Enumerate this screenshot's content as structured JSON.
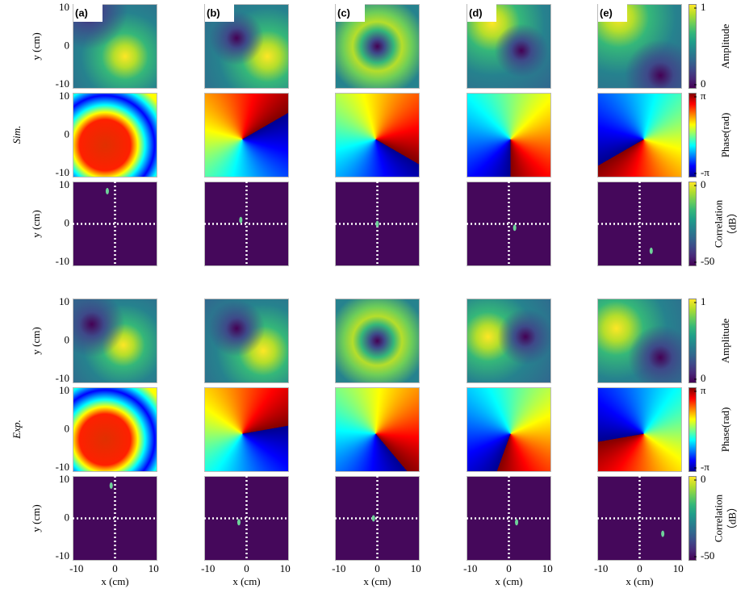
{
  "chart_data": {
    "type": "heatmap-grid",
    "panels": [
      "(a)",
      "(b)",
      "(c)",
      "(d)",
      "(e)"
    ],
    "xlabel": "x (cm)",
    "ylabel": "y (cm)",
    "xlim": [
      -11,
      11
    ],
    "ylim": [
      -11,
      11
    ],
    "xticks": [
      -10,
      0,
      10
    ],
    "yticks": [
      10,
      0,
      -10
    ],
    "maps": [
      {
        "colorbar_label": [
          "Amplitude"
        ],
        "clim": [
          0,
          1
        ],
        "cticks": [
          1,
          0
        ]
      },
      {
        "colorbar_label": [
          "Phase(rad)"
        ],
        "clim": [
          -3.1416,
          3.1416
        ],
        "cticks": [
          {
            "value": 3.1416,
            "label": "π"
          },
          {
            "value": -3.1416,
            "label": "-π"
          }
        ]
      },
      {
        "colorbar_label": [
          "Correlation",
          "（dB）"
        ],
        "clim": [
          -50,
          0
        ],
        "cticks": [
          0,
          -50
        ]
      }
    ],
    "groups": [
      {
        "label": "Sim.",
        "peak_x": [
          -2,
          -1.5,
          0,
          1.5,
          3
        ],
        "peak_y": [
          8.5,
          1,
          0,
          -1,
          -7
        ]
      },
      {
        "label": "Exp.",
        "peak_x": [
          -1,
          -2,
          -1,
          2,
          6
        ],
        "peak_y": [
          8.5,
          -1,
          0,
          -1,
          -4
        ]
      }
    ]
  }
}
